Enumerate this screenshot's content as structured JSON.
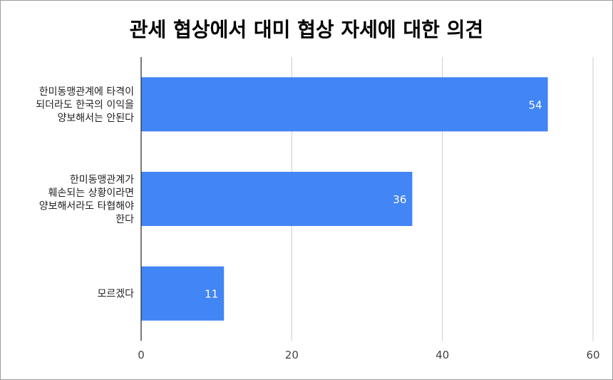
{
  "chart_data": {
    "type": "bar",
    "orientation": "horizontal",
    "title": "관세 협상에서 대미 협상 자세에 대한 의견",
    "categories": [
      [
        "한미동맹관계에 타격이",
        "되더라도 한국의 이익을",
        "양보해서는 안된다"
      ],
      [
        "한미동맹관계가",
        "훼손되는 상황이라면",
        "양보해서라도 타협해야",
        "한다"
      ],
      [
        "모르겠다"
      ]
    ],
    "values": [
      54,
      36,
      11
    ],
    "data_labels": [
      "54",
      "36",
      "11"
    ],
    "xlim": [
      0,
      60
    ],
    "xticks": [
      "0",
      "20",
      "40",
      "60"
    ],
    "grid": true,
    "legend": "none",
    "bar_color": "#4285f4",
    "grid_color": "#cccccc",
    "label_color": "#ffffff"
  }
}
